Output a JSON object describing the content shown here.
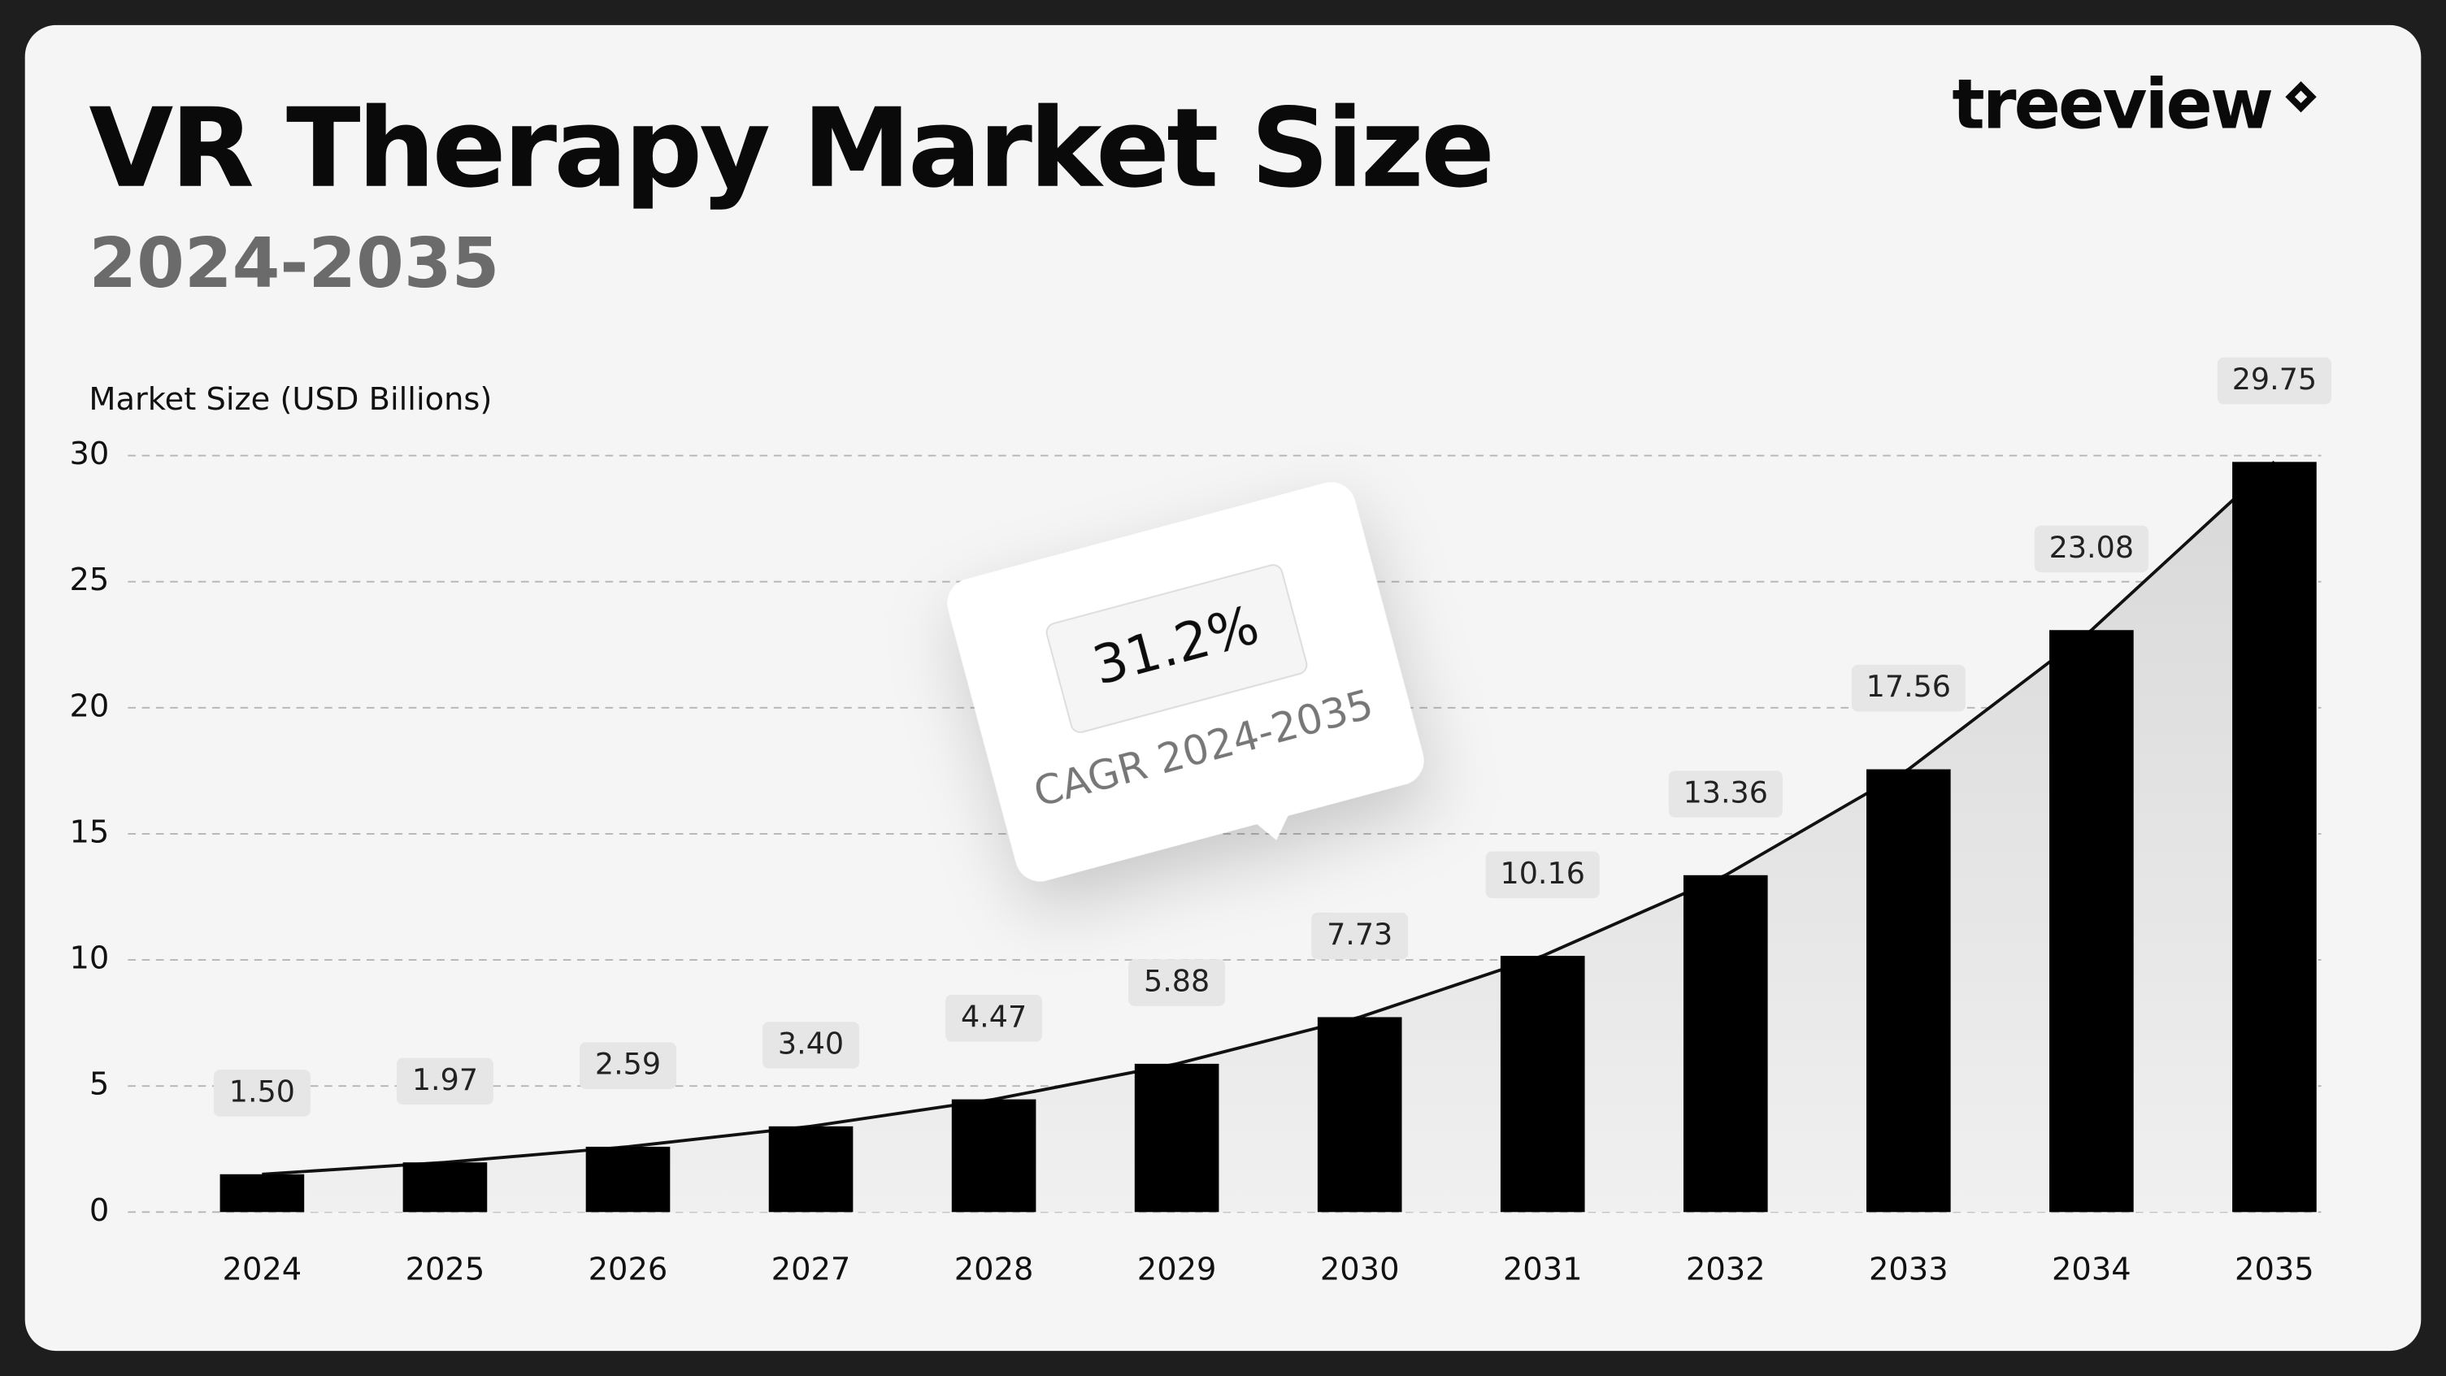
{
  "chart_data": {
    "type": "bar",
    "title": "VR Therapy Market Size",
    "subtitle": "2024-2035",
    "y_label": "Market Size (USD Billions)",
    "brand": "treeview",
    "annotation": {
      "value": "31.2%",
      "label": "CAGR 2024-2035"
    },
    "categories": [
      "2024",
      "2025",
      "2026",
      "2027",
      "2028",
      "2029",
      "2030",
      "2031",
      "2032",
      "2033",
      "2034",
      "2035"
    ],
    "values": [
      1.5,
      1.97,
      2.59,
      3.4,
      4.47,
      5.88,
      7.73,
      10.16,
      13.36,
      17.56,
      23.08,
      29.75
    ],
    "value_labels": [
      "1.50",
      "1.97",
      "2.59",
      "3.40",
      "4.47",
      "5.88",
      "7.73",
      "10.16",
      "13.36",
      "17.56",
      "23.08",
      "29.75"
    ],
    "color": "#000000",
    "ylim": [
      0,
      30
    ],
    "yticks": [
      0,
      5,
      10,
      15,
      20,
      25,
      30
    ],
    "grid": true
  }
}
